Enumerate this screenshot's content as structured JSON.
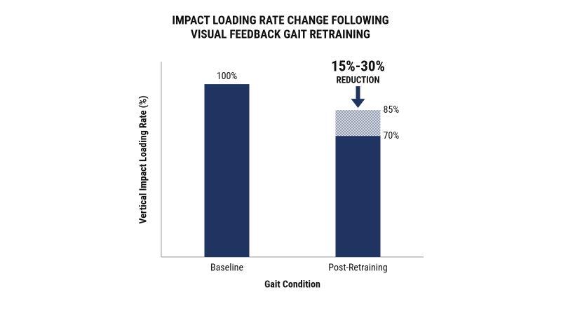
{
  "chart_data": {
    "type": "bar",
    "title": [
      "IMPACT LOADING RATE CHANGE FOLLOWING",
      "VISUAL FEEDBACK GAIT RETRAINING"
    ],
    "x_label": "Gait Condition",
    "y_label": "Vertical Impact Loading Rate (%)",
    "categories": [
      "Baseline",
      "Post-Retraining"
    ],
    "values": [
      100,
      70
    ],
    "value_labels": [
      "100%",
      "70%"
    ],
    "upper_values": [
      null,
      85
    ],
    "upper_labels": [
      null,
      "85%"
    ],
    "annotation": [
      "15%-30%",
      "REDUCTION"
    ],
    "color": "#1f3461",
    "range_color": "#9aa3b5",
    "ylim": [
      0,
      113
    ],
    "grid": false
  }
}
